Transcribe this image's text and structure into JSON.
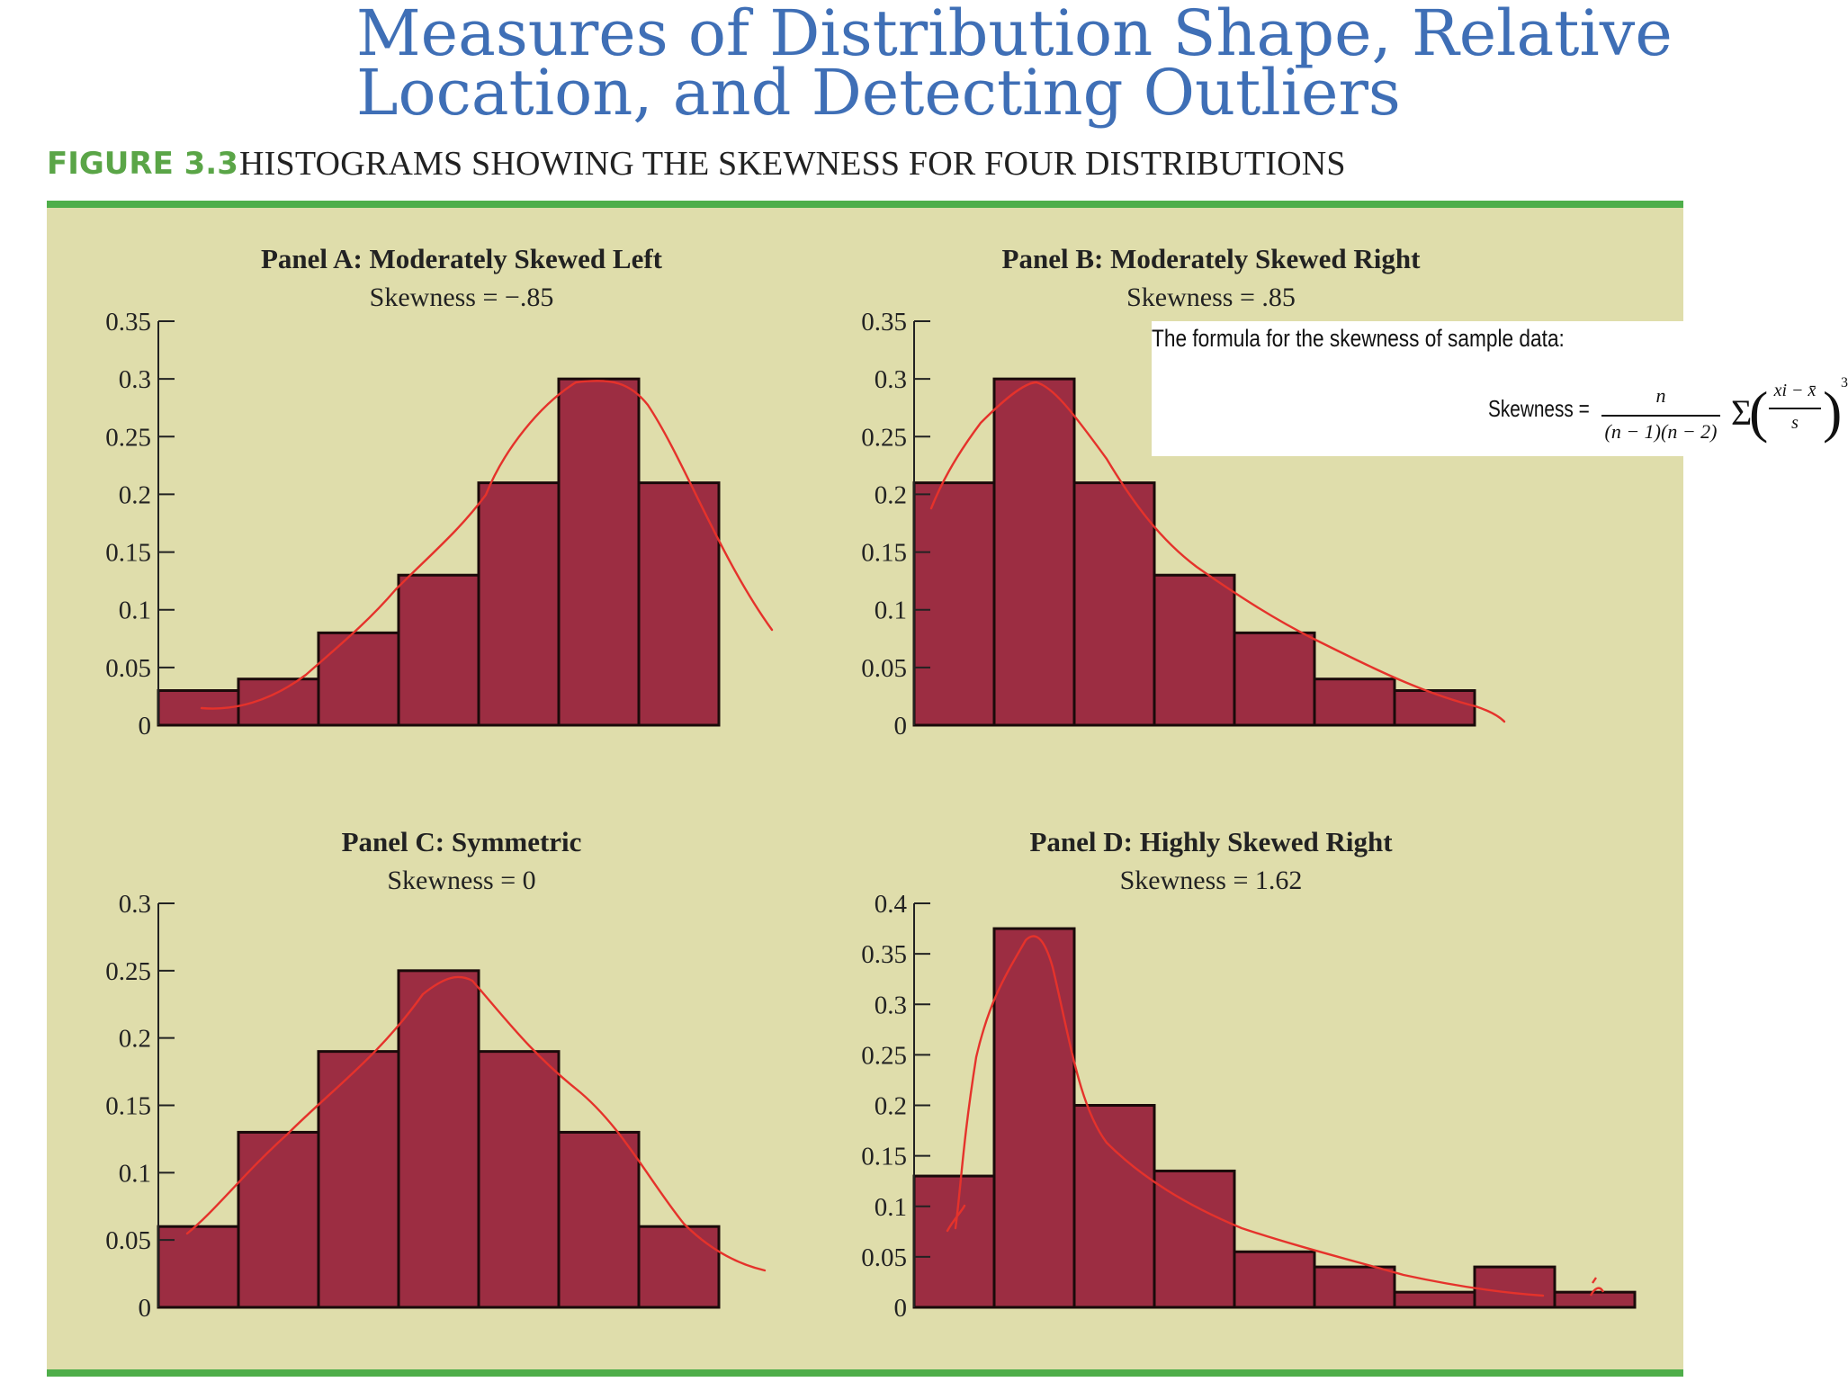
{
  "slide": {
    "title_line1": "Measures of Distribution Shape, Relative",
    "title_line2": "Location, and Detecting Outliers"
  },
  "figure": {
    "label": "FIGURE 3.3",
    "caption": "HISTOGRAMS SHOWING THE SKEWNESS FOR FOUR DISTRIBUTIONS"
  },
  "colors": {
    "title": "#3f6fb6",
    "figure_label": "#5aa547",
    "rule": "#4fae4a",
    "panel_background": "#dfddab",
    "bar_fill": "#9c2d42",
    "bar_stroke": "#1a0a0a",
    "annotation": "#e5322b"
  },
  "formula_note": {
    "intro": "The formula for the skewness of sample data:",
    "lhs": "Skewness =",
    "numerator": "n",
    "denominator": "(n − 1)(n − 2)",
    "sigma": "Σ",
    "inner_numerator": "xi − x̄",
    "inner_denominator": "s",
    "exponent": "3"
  },
  "chart_data": [
    {
      "type": "bar",
      "title": "Panel A: Moderately Skewed Left",
      "subtitle": "Skewness = −.85",
      "ylim": [
        0,
        0.35
      ],
      "yticks": [
        0,
        0.05,
        0.1,
        0.15,
        0.2,
        0.25,
        0.3,
        0.35
      ],
      "ytick_labels": [
        "0",
        "0.05",
        "0.1",
        "0.15",
        "0.2",
        "0.25",
        "0.3",
        "0.35"
      ],
      "bins": 7,
      "values": [
        0.03,
        0.04,
        0.08,
        0.13,
        0.21,
        0.3,
        0.21
      ],
      "annotation_curve": "hand-drawn smooth density curve over bars"
    },
    {
      "type": "bar",
      "title": "Panel B: Moderately Skewed Right",
      "subtitle": "Skewness = .85",
      "ylim": [
        0,
        0.35
      ],
      "yticks": [
        0,
        0.05,
        0.1,
        0.15,
        0.2,
        0.25,
        0.3,
        0.35
      ],
      "ytick_labels": [
        "0",
        "0.05",
        "0.1",
        "0.15",
        "0.2",
        "0.25",
        "0.3",
        "0.35"
      ],
      "bins": 7,
      "values": [
        0.21,
        0.3,
        0.21,
        0.13,
        0.08,
        0.04,
        0.03
      ],
      "annotation_curve": "hand-drawn smooth density curve over bars"
    },
    {
      "type": "bar",
      "title": "Panel C: Symmetric",
      "subtitle": "Skewness = 0",
      "ylim": [
        0,
        0.3
      ],
      "yticks": [
        0,
        0.05,
        0.1,
        0.15,
        0.2,
        0.25,
        0.3
      ],
      "ytick_labels": [
        "0",
        "0.05",
        "0.1",
        "0.15",
        "0.2",
        "0.25",
        "0.3"
      ],
      "bins": 7,
      "values": [
        0.06,
        0.13,
        0.19,
        0.25,
        0.19,
        0.13,
        0.06
      ],
      "annotation_curve": "hand-drawn smooth density curve over bars"
    },
    {
      "type": "bar",
      "title": "Panel D: Highly Skewed Right",
      "subtitle": "Skewness = 1.62",
      "ylim": [
        0,
        0.4
      ],
      "yticks": [
        0,
        0.05,
        0.1,
        0.15,
        0.2,
        0.25,
        0.3,
        0.35,
        0.4
      ],
      "ytick_labels": [
        "0",
        "0.05",
        "0.1",
        "0.15",
        "0.2",
        "0.25",
        "0.3",
        "0.35",
        "0.4"
      ],
      "bins": 9,
      "values": [
        0.13,
        0.375,
        0.2,
        0.135,
        0.055,
        0.04,
        0.015,
        0.04,
        0.015
      ],
      "annotation_curve": "hand-drawn smooth density curve over bars"
    }
  ]
}
